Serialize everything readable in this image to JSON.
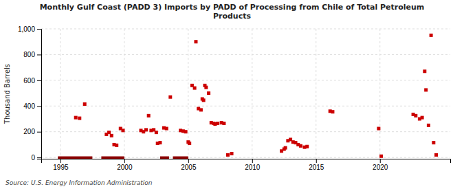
{
  "chart_data": {
    "type": "scatter",
    "title": "Monthly Gulf Coast (PADD 3) Imports by PADD of Processing from Chile of Total Petroleum\nProducts",
    "ylabel": "Thousand Barrels",
    "source": "Source: U.S. Energy Information Administration",
    "xlim": [
      1993.5,
      2025.5
    ],
    "ylim": [
      -10,
      1000
    ],
    "xticks": [
      1995,
      2000,
      2005,
      2010,
      2015,
      2020
    ],
    "yticks": [
      0,
      200,
      400,
      600,
      800,
      {
        "value": 1000,
        "label": "1,000"
      }
    ],
    "grid": true,
    "series": [
      {
        "type": "scatter",
        "marker": "square",
        "color": "#cc0000",
        "x": [
          1996.2,
          1996.5,
          1996.9,
          1998.6,
          1998.8,
          1999.0,
          1999.2,
          1999.4,
          1999.7,
          1999.9,
          2001.3,
          2001.5,
          2001.7,
          2001.9,
          2002.1,
          2002.3,
          2002.5,
          2002.6,
          2002.8,
          2003.1,
          2003.3,
          2003.6,
          2004.4,
          2004.6,
          2004.8,
          2005.0,
          2005.1,
          2005.3,
          2005.5,
          2005.6,
          2005.8,
          2006.0,
          2006.1,
          2006.2,
          2006.3,
          2006.4,
          2006.6,
          2006.8,
          2007.0,
          2007.1,
          2007.3,
          2007.6,
          2007.8,
          2008.1,
          2008.4,
          2012.3,
          2012.5,
          2012.6,
          2012.8,
          2013.0,
          2013.2,
          2013.4,
          2013.6,
          2013.8,
          2014.1,
          2014.3,
          2016.1,
          2016.3,
          2019.9,
          2020.1,
          2022.6,
          2022.8,
          2023.1,
          2023.3,
          2023.5,
          2023.6,
          2023.8,
          2024.0,
          2024.2,
          2024.4
        ],
        "values": [
          310,
          305,
          415,
          180,
          195,
          170,
          100,
          95,
          225,
          210,
          210,
          200,
          215,
          325,
          210,
          215,
          195,
          110,
          115,
          230,
          225,
          470,
          210,
          205,
          200,
          120,
          110,
          560,
          540,
          900,
          380,
          370,
          455,
          445,
          560,
          545,
          500,
          270,
          265,
          260,
          265,
          270,
          265,
          20,
          30,
          50,
          65,
          75,
          130,
          140,
          120,
          115,
          100,
          90,
          80,
          85,
          360,
          355,
          225,
          10,
          335,
          325,
          300,
          310,
          670,
          525,
          250,
          950,
          115,
          20
        ]
      },
      {
        "type": "line",
        "color": "#8b0000",
        "x": [
          1994.8,
          1997.5,
          null,
          1998.2,
          2000.0,
          null,
          2002.8,
          2003.5,
          null,
          2003.8,
          2005.0
        ],
        "values": [
          0,
          0,
          null,
          0,
          0,
          null,
          0,
          0,
          null,
          0,
          0
        ]
      }
    ]
  }
}
